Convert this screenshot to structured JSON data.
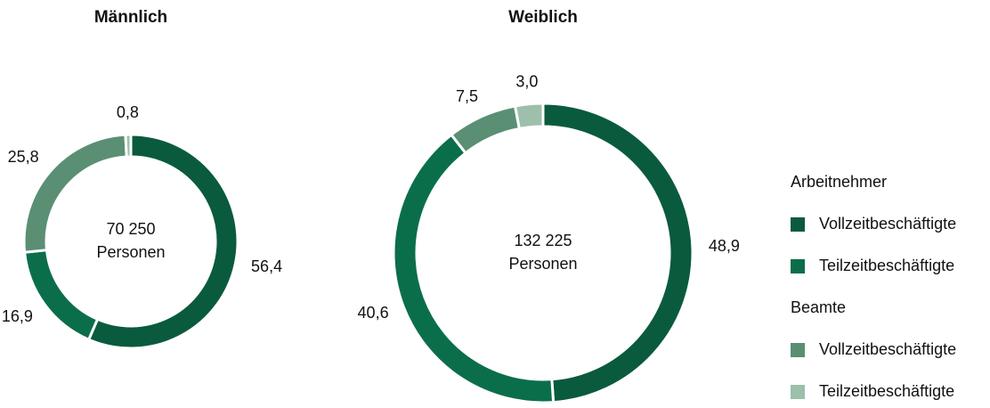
{
  "chart_data": [
    {
      "type": "pie",
      "title": "Männlich",
      "center_text": [
        "70 250",
        "Personen"
      ],
      "values": [
        56.4,
        16.9,
        25.8,
        0.8
      ],
      "value_labels": [
        "56,4",
        "16,9",
        "25,8",
        "0,8"
      ],
      "colors": [
        "#0a5a3e",
        "#0b6e4a",
        "#5a8f74",
        "#9cc0aa"
      ]
    },
    {
      "type": "pie",
      "title": "Weiblich",
      "center_text": [
        "132 225",
        "Personen"
      ],
      "values": [
        48.9,
        40.6,
        7.5,
        3.0
      ],
      "value_labels": [
        "48,9",
        "40,6",
        "7,5",
        "3,0"
      ],
      "colors": [
        "#0a5a3e",
        "#0b6e4a",
        "#5a8f74",
        "#9cc0aa"
      ]
    }
  ],
  "legend": {
    "groups": [
      {
        "title": "Arbeitnehmer",
        "entries": [
          {
            "name": "Vollzeitbeschäftigte",
            "color": "#0a5a3e"
          },
          {
            "name": "Teilzeitbeschäftigte",
            "color": "#0b6e4a"
          }
        ]
      },
      {
        "title": "Beamte",
        "entries": [
          {
            "name": "Vollzeitbeschäftigte",
            "color": "#5a8f74"
          },
          {
            "name": "Teilzeitbeschäftigte",
            "color": "#9cc0aa"
          }
        ]
      }
    ]
  }
}
